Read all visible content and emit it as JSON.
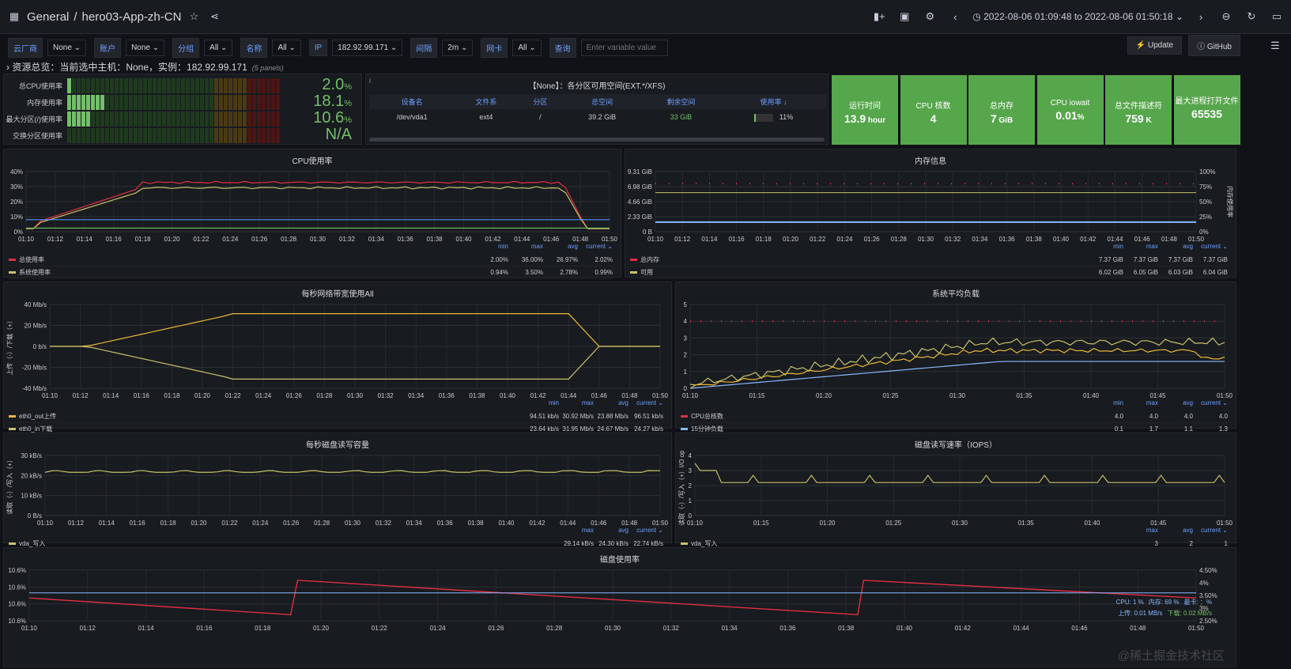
{
  "topbar": {
    "breadcrumb_home": "General",
    "separator": "/",
    "dashboard": "hero03-App-zh-CN",
    "time_range": "2022-08-06 01:09:48 to 2022-08-06 01:50:18"
  },
  "vars": [
    {
      "label": "云厂商",
      "value": "None ⌄"
    },
    {
      "label": "账户",
      "value": "None ⌄"
    },
    {
      "label": "分组",
      "value": "All ⌄"
    },
    {
      "label": "名称",
      "value": "All ⌄"
    },
    {
      "label": "IP",
      "value": "182.92.99.171 ⌄"
    },
    {
      "label": "间隔",
      "value": "2m ⌄"
    },
    {
      "label": "网卡",
      "value": "All ⌄"
    },
    {
      "label": "查询",
      "placeholder": "Enter variable value"
    }
  ],
  "buttons": {
    "update": "Update",
    "github": "GitHub"
  },
  "row": {
    "title": "› 资源总览：当前选中主机：None，实例：182.92.99.171",
    "panels": "(5 panels)"
  },
  "gauges": [
    {
      "label": "总CPU使用率",
      "value": "2.0",
      "unit": "%",
      "fill": 0.02
    },
    {
      "label": "内存使用率",
      "value": "18.1",
      "unit": "%",
      "fill": 0.181
    },
    {
      "label": "最大分区(/)使用率",
      "value": "10.6",
      "unit": "%",
      "fill": 0.106
    },
    {
      "label": "交换分区使用率",
      "value": "N/A",
      "unit": "",
      "fill": 0
    }
  ],
  "disk_table": {
    "title": "【None】：各分区可用空间(EXT.*/XFS)",
    "headers": [
      "设备名",
      "文件系",
      "分区",
      "总空间",
      "剩余空间",
      "使用率 ↓"
    ],
    "rows": [
      [
        "/dev/vda1",
        "ext4",
        "/",
        "39.2 GiB",
        "33 GiB",
        "11%"
      ]
    ],
    "usage": 0.11
  },
  "stats": [
    {
      "label": "运行时间",
      "value": "13.9",
      "unit": " hour"
    },
    {
      "label": "CPU 核数",
      "value": "4",
      "unit": ""
    },
    {
      "label": "总内存",
      "value": "7",
      "unit": " GiB"
    },
    {
      "label": "CPU iowait",
      "value": "0.01",
      "unit": "%"
    },
    {
      "label": "总文件描述符",
      "value": "759",
      "unit": " K"
    },
    {
      "label": "最大进程打开文件",
      "value": "65535",
      "unit": ""
    }
  ],
  "panels": {
    "cpu": {
      "title": "CPU使用率",
      "yticks": [
        "40%",
        "30%",
        "20%",
        "10%",
        "0%"
      ],
      "xticks": [
        "01:10",
        "01:12",
        "01:14",
        "01:16",
        "01:18",
        "01:20",
        "01:22",
        "01:24",
        "01:26",
        "01:28",
        "01:30",
        "01:32",
        "01:34",
        "01:36",
        "01:38",
        "01:40",
        "01:42",
        "01:44",
        "01:46",
        "01:48",
        "01:50"
      ],
      "legend_head": [
        "min",
        "max",
        "avg",
        "current ⌄"
      ],
      "legend": [
        {
          "name": "总使用率",
          "color": "#e02f44",
          "v": [
            "2.00%",
            "36.00%",
            "26.97%",
            "2.02%"
          ]
        },
        {
          "name": "系统使用率",
          "color": "#c8c16a",
          "v": [
            "0.94%",
            "3.50%",
            "2.78%",
            "0.99%"
          ]
        }
      ]
    },
    "mem": {
      "title": "内存信息",
      "yticks": [
        "9.31 GiB",
        "6.98 GiB",
        "4.66 GiB",
        "2.33 GiB",
        "0 B"
      ],
      "yticks_r": [
        "100%",
        "75%",
        "50%",
        "25%",
        "0%"
      ],
      "ylabel_r": "内存使用率",
      "xticks": [
        "01:10",
        "01:12",
        "01:14",
        "01:16",
        "01:18",
        "01:20",
        "01:22",
        "01:24",
        "01:26",
        "01:28",
        "01:30",
        "01:32",
        "01:34",
        "01:36",
        "01:38",
        "01:40",
        "01:42",
        "01:44",
        "01:46",
        "01:48",
        "01:50"
      ],
      "legend_head": [
        "min",
        "max",
        "avg",
        "current ⌄"
      ],
      "legend": [
        {
          "name": "总内存",
          "color": "#e02f44",
          "v": [
            "7.37 GiB",
            "7.37 GiB",
            "7.37 GiB",
            "7.37 GiB"
          ]
        },
        {
          "name": "可用",
          "color": "#c8c16a",
          "v": [
            "6.02 GiB",
            "6.05 GiB",
            "6.03 GiB",
            "6.04 GiB"
          ]
        }
      ]
    },
    "net": {
      "title": "每秒网络带宽使用All",
      "yticks": [
        "40 Mb/s",
        "20 Mb/s",
        "0 b/s",
        "-20 Mb/s",
        "-40 Mb/s"
      ],
      "ylabel": "上传（-）/下载（+）",
      "xticks": [
        "01:10",
        "01:12",
        "01:14",
        "01:16",
        "01:18",
        "01:20",
        "01:22",
        "01:24",
        "01:26",
        "01:28",
        "01:30",
        "01:32",
        "01:34",
        "01:36",
        "01:38",
        "01:40",
        "01:42",
        "01:44",
        "01:46",
        "01:48",
        "01:50"
      ],
      "legend_head": [
        "min",
        "max",
        "avg",
        "current ⌄"
      ],
      "legend": [
        {
          "name": "eth0_out上传",
          "color": "#eab839",
          "v": [
            "94.51 kb/s",
            "30.92 Mb/s",
            "23.88 Mb/s",
            "96.51 kb/s"
          ]
        },
        {
          "name": "eth0_in下载",
          "color": "#c8c16a",
          "v": [
            "23.64 kb/s",
            "31.95 Mb/s",
            "24.67 Mb/s",
            "24.27 kb/s"
          ]
        }
      ]
    },
    "load": {
      "title": "系统平均负载",
      "yticks": [
        "5",
        "4",
        "3",
        "2",
        "1",
        "0"
      ],
      "xticks": [
        "01:10",
        "01:15",
        "01:20",
        "01:25",
        "01:30",
        "01:35",
        "01:40",
        "01:45",
        "01:50"
      ],
      "legend_head": [
        "min",
        "max",
        "avg",
        "current ⌄"
      ],
      "legend": [
        {
          "name": "CPU总核数",
          "color": "#e02f44",
          "v": [
            "4.0",
            "4.0",
            "4.0",
            "4.0"
          ]
        },
        {
          "name": "15分钟负载",
          "color": "#8ab8ff",
          "v": [
            "0.1",
            "1.7",
            "1.1",
            "1.3"
          ]
        }
      ]
    },
    "diskrw": {
      "title": "每秒磁盘读写容量",
      "yticks": [
        "30 kB/s",
        "20 kB/s",
        "10 kB/s",
        "0 B/s"
      ],
      "ylabel": "读取（-）/写入（+）",
      "xticks": [
        "01:10",
        "01:12",
        "01:14",
        "01:16",
        "01:18",
        "01:20",
        "01:22",
        "01:24",
        "01:26",
        "01:28",
        "01:30",
        "01:32",
        "01:34",
        "01:36",
        "01:38",
        "01:40",
        "01:42",
        "01:44",
        "01:46",
        "01:48",
        "01:50"
      ],
      "legend_head": [
        "max",
        "avg",
        "current ⌄"
      ],
      "legend": [
        {
          "name": "vda_写入",
          "color": "#c8c16a",
          "v": [
            "29.14 kB/s",
            "24.30 kB/s",
            "22.74 kB/s"
          ]
        }
      ]
    },
    "iops": {
      "title": "磁盘读写速率（IOPS）",
      "yticks": [
        "4",
        "3",
        "2",
        "1",
        "0"
      ],
      "ylabel": "读取（-）/写入（+）I/O ops/",
      "xticks": [
        "01:10",
        "01:15",
        "01:20",
        "01:25",
        "01:30",
        "01:35",
        "01:40",
        "01:45",
        "01:50"
      ],
      "legend_head": [
        "max",
        "avg",
        "current ⌄"
      ],
      "legend": [
        {
          "name": "vda_写入",
          "color": "#c8c16a",
          "v": [
            "3",
            "2",
            "1"
          ]
        }
      ]
    },
    "diskuse": {
      "title": "磁盘使用率",
      "yticks": [
        "10.6%",
        "10.6%",
        "10.6%",
        "10.6%"
      ],
      "yticks_r": [
        "4.50%",
        "4%",
        "3.50%",
        "3%",
        "2.50%"
      ],
      "xticks": [
        "01:10",
        "01:12",
        "01:14",
        "01:16",
        "01:18",
        "01:20",
        "01:22",
        "01:24",
        "01:26",
        "01:28",
        "01:30",
        "01:32",
        "01:34",
        "01:36",
        "01:38",
        "01:40",
        "01:42",
        "01:44",
        "01:46",
        "01:48",
        "01:50"
      ],
      "mini": [
        "CPU: 1 %",
        "内存: 69 %",
        "最卡: ：%",
        "上传: 0.01 MB/s",
        "下载: 0.02 MB/s"
      ],
      "watermark": "@稀土掘金技术社区"
    }
  }
}
